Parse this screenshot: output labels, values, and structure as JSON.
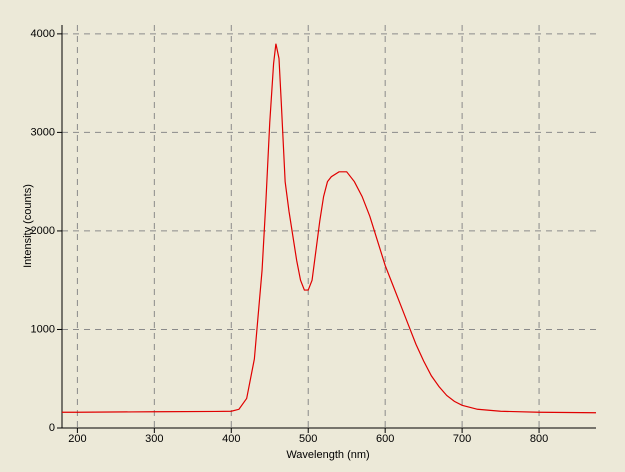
{
  "chart_data": {
    "type": "line",
    "x_label": "Wavelength (nm)",
    "y_label": "Intensity (counts)",
    "xlim": [
      180,
      874
    ],
    "ylim": [
      0,
      4090
    ],
    "xticks": [
      200,
      300,
      400,
      500,
      600,
      700,
      800
    ],
    "yticks": [
      0,
      1000,
      2000,
      3000,
      4000
    ],
    "grid": true,
    "series": [
      {
        "color": "#e00000",
        "x": [
          180,
          200,
          300,
          380,
          400,
          410,
          420,
          430,
          440,
          445,
          450,
          455,
          458,
          462,
          465,
          470,
          475,
          480,
          485,
          490,
          495,
          500,
          505,
          510,
          515,
          520,
          525,
          530,
          540,
          550,
          560,
          570,
          580,
          590,
          600,
          610,
          620,
          630,
          640,
          650,
          660,
          670,
          680,
          690,
          700,
          720,
          750,
          800,
          874
        ],
        "values": [
          160,
          160,
          165,
          168,
          170,
          190,
          300,
          700,
          1600,
          2300,
          3100,
          3700,
          3900,
          3750,
          3300,
          2500,
          2200,
          1950,
          1700,
          1500,
          1400,
          1400,
          1500,
          1800,
          2100,
          2350,
          2500,
          2550,
          2600,
          2600,
          2500,
          2350,
          2150,
          1900,
          1650,
          1450,
          1250,
          1050,
          850,
          680,
          530,
          420,
          330,
          270,
          230,
          190,
          170,
          160,
          155
        ]
      }
    ]
  }
}
